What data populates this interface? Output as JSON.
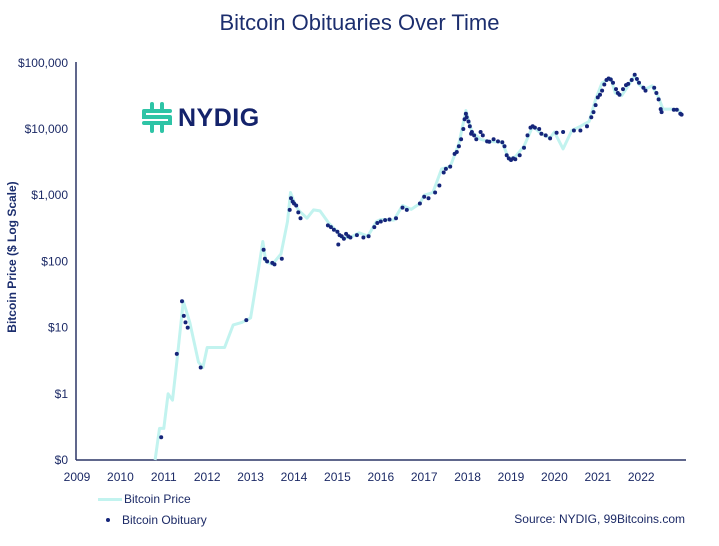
{
  "chart_data": {
    "type": "line",
    "title": "Bitcoin Obituaries Over Time",
    "xlabel": "",
    "ylabel": "Bitcoin Price ($ Log Scale)",
    "y_scale": "log",
    "xlim": [
      2009,
      2023
    ],
    "ylim": [
      0.1,
      100000
    ],
    "grid": false,
    "legend_position": "bottom-left",
    "x_ticks": [
      "2009",
      "2010",
      "2011",
      "2012",
      "2013",
      "2014",
      "2015",
      "2016",
      "2017",
      "2018",
      "2019",
      "2020",
      "2021",
      "2022"
    ],
    "y_ticks": [
      {
        "value": 100000,
        "label": "$100,000"
      },
      {
        "value": 10000,
        "label": "$10,000"
      },
      {
        "value": 1000,
        "label": "$1,000"
      },
      {
        "value": 100,
        "label": "$100"
      },
      {
        "value": 10,
        "label": "$10"
      },
      {
        "value": 1,
        "label": "$1"
      },
      {
        "value": 0.1,
        "label": "$0"
      }
    ],
    "series": [
      {
        "name": "Bitcoin Price",
        "kind": "line",
        "color": "#c2f3ef",
        "points": [
          [
            2010.8,
            0.1
          ],
          [
            2010.9,
            0.3
          ],
          [
            2011.0,
            0.3
          ],
          [
            2011.1,
            1
          ],
          [
            2011.2,
            0.8
          ],
          [
            2011.3,
            3
          ],
          [
            2011.45,
            25
          ],
          [
            2011.6,
            12
          ],
          [
            2011.8,
            3
          ],
          [
            2011.9,
            2.5
          ],
          [
            2012.0,
            5
          ],
          [
            2012.2,
            5
          ],
          [
            2012.4,
            5
          ],
          [
            2012.6,
            11
          ],
          [
            2012.8,
            12
          ],
          [
            2013.0,
            14
          ],
          [
            2013.2,
            90
          ],
          [
            2013.28,
            200
          ],
          [
            2013.35,
            100
          ],
          [
            2013.5,
            90
          ],
          [
            2013.7,
            130
          ],
          [
            2013.85,
            400
          ],
          [
            2013.92,
            1100
          ],
          [
            2014.0,
            800
          ],
          [
            2014.1,
            600
          ],
          [
            2014.3,
            450
          ],
          [
            2014.45,
            600
          ],
          [
            2014.6,
            580
          ],
          [
            2014.8,
            380
          ],
          [
            2015.0,
            280
          ],
          [
            2015.1,
            230
          ],
          [
            2015.3,
            230
          ],
          [
            2015.5,
            270
          ],
          [
            2015.7,
            240
          ],
          [
            2015.9,
            400
          ],
          [
            2016.0,
            430
          ],
          [
            2016.3,
            420
          ],
          [
            2016.5,
            700
          ],
          [
            2016.7,
            610
          ],
          [
            2016.9,
            750
          ],
          [
            2017.0,
            1000
          ],
          [
            2017.2,
            1100
          ],
          [
            2017.4,
            2500
          ],
          [
            2017.6,
            2700
          ],
          [
            2017.8,
            6000
          ],
          [
            2017.96,
            19000
          ],
          [
            2018.1,
            9000
          ],
          [
            2018.3,
            7000
          ],
          [
            2018.5,
            6500
          ],
          [
            2018.8,
            6300
          ],
          [
            2018.95,
            3500
          ],
          [
            2019.1,
            3800
          ],
          [
            2019.3,
            5500
          ],
          [
            2019.5,
            11000
          ],
          [
            2019.7,
            8500
          ],
          [
            2019.9,
            7300
          ],
          [
            2020.0,
            9000
          ],
          [
            2020.2,
            5000
          ],
          [
            2020.4,
            9500
          ],
          [
            2020.6,
            11000
          ],
          [
            2020.8,
            13000
          ],
          [
            2020.95,
            28000
          ],
          [
            2021.1,
            50000
          ],
          [
            2021.3,
            58000
          ],
          [
            2021.4,
            35000
          ],
          [
            2021.55,
            32000
          ],
          [
            2021.7,
            45000
          ],
          [
            2021.85,
            65000
          ],
          [
            2021.95,
            47000
          ],
          [
            2022.1,
            40000
          ],
          [
            2022.25,
            45000
          ],
          [
            2022.4,
            30000
          ],
          [
            2022.5,
            20000
          ],
          [
            2022.7,
            20000
          ],
          [
            2022.85,
            19500
          ],
          [
            2022.95,
            16500
          ]
        ]
      },
      {
        "name": "Bitcoin Obituary",
        "kind": "scatter",
        "color": "#15257a",
        "points": [
          [
            2010.94,
            0.22
          ],
          [
            2011.3,
            4
          ],
          [
            2011.42,
            25
          ],
          [
            2011.46,
            15
          ],
          [
            2011.5,
            12
          ],
          [
            2011.55,
            10
          ],
          [
            2011.85,
            2.5
          ],
          [
            2012.9,
            13
          ],
          [
            2013.3,
            150
          ],
          [
            2013.33,
            110
          ],
          [
            2013.38,
            100
          ],
          [
            2013.5,
            95
          ],
          [
            2013.55,
            90
          ],
          [
            2013.72,
            110
          ],
          [
            2013.9,
            600
          ],
          [
            2013.93,
            900
          ],
          [
            2013.97,
            800
          ],
          [
            2014.0,
            750
          ],
          [
            2014.05,
            700
          ],
          [
            2014.1,
            550
          ],
          [
            2014.15,
            450
          ],
          [
            2014.78,
            350
          ],
          [
            2014.85,
            330
          ],
          [
            2014.92,
            300
          ],
          [
            2015.0,
            280
          ],
          [
            2015.02,
            180
          ],
          [
            2015.05,
            250
          ],
          [
            2015.1,
            240
          ],
          [
            2015.15,
            220
          ],
          [
            2015.2,
            260
          ],
          [
            2015.25,
            240
          ],
          [
            2015.3,
            230
          ],
          [
            2015.45,
            250
          ],
          [
            2015.6,
            230
          ],
          [
            2015.72,
            240
          ],
          [
            2015.85,
            330
          ],
          [
            2015.92,
            380
          ],
          [
            2016.0,
            400
          ],
          [
            2016.1,
            420
          ],
          [
            2016.2,
            430
          ],
          [
            2016.35,
            450
          ],
          [
            2016.5,
            650
          ],
          [
            2016.6,
            600
          ],
          [
            2016.9,
            750
          ],
          [
            2017.0,
            950
          ],
          [
            2017.1,
            900
          ],
          [
            2017.25,
            1100
          ],
          [
            2017.35,
            1400
          ],
          [
            2017.45,
            2200
          ],
          [
            2017.5,
            2500
          ],
          [
            2017.6,
            2700
          ],
          [
            2017.7,
            4200
          ],
          [
            2017.75,
            4500
          ],
          [
            2017.8,
            5500
          ],
          [
            2017.85,
            7000
          ],
          [
            2017.9,
            10000
          ],
          [
            2017.93,
            14000
          ],
          [
            2017.96,
            17000
          ],
          [
            2017.98,
            15000
          ],
          [
            2018.02,
            13000
          ],
          [
            2018.05,
            11000
          ],
          [
            2018.08,
            8500
          ],
          [
            2018.1,
            9000
          ],
          [
            2018.15,
            8000
          ],
          [
            2018.2,
            7000
          ],
          [
            2018.3,
            9000
          ],
          [
            2018.35,
            8000
          ],
          [
            2018.45,
            6500
          ],
          [
            2018.5,
            6400
          ],
          [
            2018.6,
            7000
          ],
          [
            2018.7,
            6500
          ],
          [
            2018.8,
            6300
          ],
          [
            2018.85,
            5500
          ],
          [
            2018.9,
            4000
          ],
          [
            2018.95,
            3600
          ],
          [
            2019.0,
            3400
          ],
          [
            2019.05,
            3600
          ],
          [
            2019.1,
            3500
          ],
          [
            2019.2,
            4000
          ],
          [
            2019.3,
            5200
          ],
          [
            2019.38,
            8000
          ],
          [
            2019.45,
            10500
          ],
          [
            2019.5,
            11000
          ],
          [
            2019.55,
            10500
          ],
          [
            2019.65,
            10000
          ],
          [
            2019.7,
            8500
          ],
          [
            2019.8,
            8000
          ],
          [
            2019.9,
            7200
          ],
          [
            2020.05,
            8800
          ],
          [
            2020.2,
            9000
          ],
          [
            2020.45,
            9500
          ],
          [
            2020.6,
            9500
          ],
          [
            2020.75,
            11000
          ],
          [
            2020.85,
            15000
          ],
          [
            2020.9,
            18000
          ],
          [
            2020.95,
            23000
          ],
          [
            2021.0,
            30000
          ],
          [
            2021.05,
            33000
          ],
          [
            2021.1,
            38000
          ],
          [
            2021.15,
            47000
          ],
          [
            2021.2,
            55000
          ],
          [
            2021.25,
            58000
          ],
          [
            2021.3,
            56000
          ],
          [
            2021.35,
            50000
          ],
          [
            2021.42,
            40000
          ],
          [
            2021.46,
            35000
          ],
          [
            2021.5,
            33000
          ],
          [
            2021.58,
            40000
          ],
          [
            2021.65,
            46000
          ],
          [
            2021.7,
            48000
          ],
          [
            2021.78,
            55000
          ],
          [
            2021.85,
            66000
          ],
          [
            2021.9,
            57000
          ],
          [
            2021.95,
            50000
          ],
          [
            2022.05,
            42000
          ],
          [
            2022.1,
            38000
          ],
          [
            2022.3,
            42000
          ],
          [
            2022.35,
            35000
          ],
          [
            2022.4,
            28000
          ],
          [
            2022.45,
            20000
          ],
          [
            2022.47,
            18000
          ],
          [
            2022.75,
            19500
          ],
          [
            2022.82,
            19500
          ],
          [
            2022.9,
            17000
          ],
          [
            2022.93,
            16500
          ]
        ]
      }
    ],
    "source": "Source: NYDIG, 99Bitcoins.com"
  },
  "logo": {
    "text": "NYDIG",
    "accent_color": "#2ec4a6",
    "text_color": "#14236b"
  }
}
